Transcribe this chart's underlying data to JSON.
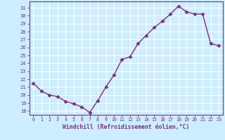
{
  "x": [
    0,
    1,
    2,
    3,
    4,
    5,
    6,
    7,
    8,
    9,
    10,
    11,
    12,
    13,
    14,
    15,
    16,
    17,
    18,
    19,
    20,
    21,
    22,
    23
  ],
  "y": [
    21.5,
    20.5,
    20.0,
    19.8,
    19.2,
    18.9,
    18.5,
    17.8,
    19.3,
    21.0,
    22.5,
    24.5,
    24.8,
    26.5,
    27.5,
    28.5,
    29.3,
    30.2,
    31.2,
    30.5,
    30.2,
    30.2,
    26.5,
    26.2
  ],
  "line_color": "#7B2D8B",
  "marker": "D",
  "markersize": 2.5,
  "linewidth": 1.0,
  "xlabel": "Windchill (Refroidissement éolien,°C)",
  "ylabel_ticks": [
    18,
    19,
    20,
    21,
    22,
    23,
    24,
    25,
    26,
    27,
    28,
    29,
    30,
    31
  ],
  "ylim": [
    17.5,
    31.8
  ],
  "xlim": [
    -0.5,
    23.5
  ],
  "bg_color": "#cceeff",
  "grid_color": "#ffffff",
  "spine_color": "#7B2D8B"
}
